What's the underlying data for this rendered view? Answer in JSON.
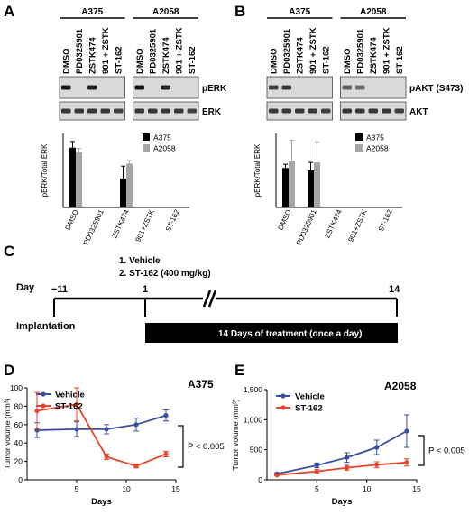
{
  "panels": {
    "A": "A",
    "B": "B",
    "C": "C",
    "D": "D",
    "E": "E"
  },
  "blots": {
    "A": {
      "groups": [
        "A375",
        "A2058"
      ],
      "lanes": [
        "DMSO",
        "PD0325901",
        "ZSTK474",
        "901 + ZSTK",
        "ST-162"
      ],
      "bands": [
        "pERK",
        "ERK"
      ]
    },
    "B": {
      "groups": [
        "A375",
        "A2058"
      ],
      "lanes": [
        "DMSO",
        "PD0325901",
        "ZSTK474",
        "901 + ZSTK",
        "ST-162"
      ],
      "bands": [
        "pAKT (S473)",
        "AKT"
      ]
    }
  },
  "timeline": {
    "legend": [
      "1.    Vehicle",
      "2.    ST-162 (400 mg/kg)"
    ],
    "day_label": "Day",
    "ticks": [
      "−11",
      "1",
      "14"
    ],
    "implantation": "Implantation",
    "treatment": "14 Days of treatment (once a day)"
  },
  "chart_data": [
    {
      "panel": "A",
      "type": "bar",
      "ylabel": "pERK/Total ERK",
      "categories": [
        "DMSO",
        "PD0325901",
        "ZSTK474",
        "901+ZSTK",
        "ST-162"
      ],
      "ylim": [
        0,
        1.2
      ],
      "series": [
        {
          "name": "A375",
          "color": "#000000",
          "values": [
            0.97,
            0.0,
            0.47,
            0.0,
            0.0
          ],
          "errors": [
            0.1,
            0.0,
            0.2,
            0.0,
            0.0
          ]
        },
        {
          "name": "A2058",
          "color": "#a6a6a6",
          "values": [
            0.9,
            0.0,
            0.71,
            0.0,
            0.0
          ],
          "errors": [
            0.06,
            0.0,
            0.05,
            0.0,
            0.0
          ]
        }
      ]
    },
    {
      "panel": "B",
      "type": "bar",
      "ylabel": "pERK/Total ERK",
      "categories": [
        "DMSO",
        "PD0325901",
        "ZSTK474",
        "901+ZSTK",
        "ST-162"
      ],
      "ylim": [
        0,
        1.2
      ],
      "series": [
        {
          "name": "A375",
          "color": "#000000",
          "values": [
            0.64,
            0.6,
            0.0,
            0.0,
            0.0
          ],
          "errors": [
            0.06,
            0.13,
            0.0,
            0.0,
            0.0
          ]
        },
        {
          "name": "A2058",
          "color": "#a6a6a6",
          "values": [
            0.76,
            0.73,
            0.0,
            0.0,
            0.0
          ],
          "errors": [
            0.33,
            0.33,
            0.0,
            0.0,
            0.0
          ]
        }
      ]
    },
    {
      "panel": "D",
      "type": "line",
      "title": "A375",
      "xlabel": "Days",
      "ylabel": "Tumor volume (mm³)",
      "xlim": [
        0,
        15
      ],
      "ylim": [
        0,
        100
      ],
      "xticks": [
        5,
        10,
        15
      ],
      "yticks": [
        0,
        20,
        40,
        60,
        80,
        100
      ],
      "x": [
        1,
        5,
        8,
        11,
        14
      ],
      "series": [
        {
          "name": "Vehicle",
          "color": "#3a4ea3",
          "values": [
            54,
            55,
            55,
            60,
            70
          ],
          "errors": [
            8,
            8,
            5,
            7,
            6
          ]
        },
        {
          "name": "ST-162",
          "color": "#e8452c",
          "values": [
            75,
            82,
            25,
            15,
            28
          ],
          "errors": [
            20,
            18,
            3,
            2,
            3
          ]
        }
      ],
      "annotation": "P < 0.005"
    },
    {
      "panel": "E",
      "type": "line",
      "title": "A2058",
      "xlabel": "Days",
      "ylabel": "Tumor volume (mm³)",
      "xlim": [
        0,
        15
      ],
      "ylim": [
        0,
        1500
      ],
      "xticks": [
        5,
        10,
        15
      ],
      "yticks": [
        0,
        500,
        1000,
        1500
      ],
      "ytick_labels": [
        "0",
        "500",
        "1,000",
        "1,500"
      ],
      "x": [
        1,
        5,
        8,
        11,
        14
      ],
      "series": [
        {
          "name": "Vehicle",
          "color": "#3a4ea3",
          "values": [
            100,
            240,
            370,
            540,
            810
          ],
          "errors": [
            20,
            40,
            80,
            120,
            270
          ]
        },
        {
          "name": "ST-162",
          "color": "#e8452c",
          "values": [
            80,
            140,
            200,
            250,
            290
          ],
          "errors": [
            15,
            30,
            40,
            50,
            60
          ]
        }
      ],
      "annotation": "P < 0.005"
    }
  ]
}
